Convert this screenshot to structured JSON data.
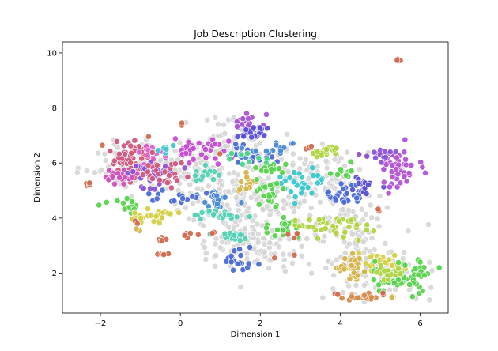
{
  "chart_data": {
    "type": "scatter",
    "title": "Job Description Clustering",
    "xlabel": "Dimension 1",
    "ylabel": "Dimension 2",
    "xlim": [
      -2.95,
      6.7
    ],
    "ylim": [
      0.55,
      10.4
    ],
    "xticks": [
      -2,
      0,
      2,
      4,
      6
    ],
    "yticks": [
      2,
      4,
      6,
      8,
      10
    ],
    "xtick_labels": [
      "−2",
      "0",
      "2",
      "4",
      "6"
    ],
    "ytick_labels": [
      "2",
      "4",
      "6",
      "8",
      "10"
    ],
    "grid": false,
    "legend": "none",
    "marker_edge_color": "#ffffff",
    "noise_color": "#d3d3d3",
    "noise_regions": [
      {
        "x": -1.0,
        "y": 5.9,
        "sx": 0.7,
        "sy": 0.4,
        "n": 110
      },
      {
        "x": 0.6,
        "y": 5.6,
        "sx": 0.5,
        "sy": 0.7,
        "n": 70
      },
      {
        "x": 1.6,
        "y": 4.4,
        "sx": 0.6,
        "sy": 0.9,
        "n": 110
      },
      {
        "x": 1.6,
        "y": 3.0,
        "sx": 0.6,
        "sy": 0.45,
        "n": 90
      },
      {
        "x": 2.5,
        "y": 5.3,
        "sx": 0.7,
        "sy": 0.7,
        "n": 80
      },
      {
        "x": 3.6,
        "y": 5.4,
        "sx": 0.6,
        "sy": 0.6,
        "n": 70
      },
      {
        "x": 4.2,
        "y": 3.8,
        "sx": 0.6,
        "sy": 0.5,
        "n": 70
      },
      {
        "x": 4.5,
        "y": 2.3,
        "sx": 0.5,
        "sy": 0.5,
        "n": 60
      },
      {
        "x": 5.3,
        "y": 2.0,
        "sx": 0.5,
        "sy": 0.4,
        "n": 40
      },
      {
        "x": 1.4,
        "y": 7.0,
        "sx": 0.4,
        "sy": 0.4,
        "n": 30
      }
    ],
    "clusters": [
      {
        "color": "#d0577e",
        "x": -1.2,
        "y": 6.1,
        "sx": 0.3,
        "sy": 0.35,
        "n": 60
      },
      {
        "color": "#d04fb9",
        "x": -1.5,
        "y": 5.5,
        "sx": 0.25,
        "sy": 0.15,
        "n": 25
      },
      {
        "color": "#c64bd4",
        "x": 0.2,
        "y": 6.4,
        "sx": 0.4,
        "sy": 0.2,
        "n": 40
      },
      {
        "color": "#dc5fcd",
        "x": -0.8,
        "y": 6.4,
        "sx": 0.2,
        "sy": 0.15,
        "n": 15
      },
      {
        "color": "#8d52d6",
        "x": -0.7,
        "y": 5.6,
        "sx": 0.35,
        "sy": 0.25,
        "n": 35
      },
      {
        "color": "#d0577e",
        "x": -0.3,
        "y": 5.6,
        "sx": 0.3,
        "sy": 0.25,
        "n": 25
      },
      {
        "color": "#a855d4",
        "x": 1.6,
        "y": 7.5,
        "sx": 0.25,
        "sy": 0.15,
        "n": 20
      },
      {
        "color": "#5b4fd6",
        "x": 1.8,
        "y": 7.1,
        "sx": 0.2,
        "sy": 0.2,
        "n": 25
      },
      {
        "color": "#4b6bd6",
        "x": 1.9,
        "y": 6.3,
        "sx": 0.35,
        "sy": 0.2,
        "n": 20
      },
      {
        "color": "#4b8ad6",
        "x": 2.2,
        "y": 6.5,
        "sx": 0.35,
        "sy": 0.15,
        "n": 15
      },
      {
        "color": "#3ac8cf",
        "x": 3.0,
        "y": 5.2,
        "sx": 0.3,
        "sy": 0.25,
        "n": 30
      },
      {
        "color": "#53d0b4",
        "x": 0.7,
        "y": 5.6,
        "sx": 0.2,
        "sy": 0.15,
        "n": 12
      },
      {
        "color": "#4bd68a",
        "x": 1.6,
        "y": 6.2,
        "sx": 0.2,
        "sy": 0.15,
        "n": 10
      },
      {
        "color": "#4b8ad6",
        "x": 0.9,
        "y": 4.7,
        "sx": 0.25,
        "sy": 0.2,
        "n": 20
      },
      {
        "color": "#4b6bd6",
        "x": -0.1,
        "y": 4.8,
        "sx": 0.3,
        "sy": 0.15,
        "n": 15
      },
      {
        "color": "#59d34d",
        "x": -1.4,
        "y": 4.45,
        "sx": 0.25,
        "sy": 0.1,
        "n": 15
      },
      {
        "color": "#d4d044",
        "x": -0.75,
        "y": 4.05,
        "sx": 0.3,
        "sy": 0.12,
        "n": 25
      },
      {
        "color": "#53d0b4",
        "x": 1.0,
        "y": 4.1,
        "sx": 0.35,
        "sy": 0.1,
        "n": 20
      },
      {
        "color": "#53d0b4",
        "x": 1.3,
        "y": 3.35,
        "sx": 0.3,
        "sy": 0.1,
        "n": 15
      },
      {
        "color": "#4b6bd6",
        "x": 1.45,
        "y": 2.6,
        "sx": 0.2,
        "sy": 0.3,
        "n": 20
      },
      {
        "color": "#d4b44b",
        "x": 1.7,
        "y": 5.3,
        "sx": 0.2,
        "sy": 0.2,
        "n": 15
      },
      {
        "color": "#59d34d",
        "x": 2.2,
        "y": 4.9,
        "sx": 0.25,
        "sy": 0.3,
        "n": 25
      },
      {
        "color": "#59d34d",
        "x": 2.3,
        "y": 5.8,
        "sx": 0.3,
        "sy": 0.12,
        "n": 15
      },
      {
        "color": "#59d34d",
        "x": 2.6,
        "y": 3.7,
        "sx": 0.3,
        "sy": 0.2,
        "n": 25
      },
      {
        "color": "#b0d440",
        "x": 3.6,
        "y": 6.4,
        "sx": 0.2,
        "sy": 0.1,
        "n": 15
      },
      {
        "color": "#b0d440",
        "x": 3.8,
        "y": 3.7,
        "sx": 0.35,
        "sy": 0.25,
        "n": 40
      },
      {
        "color": "#59d34d",
        "x": 4.1,
        "y": 5.7,
        "sx": 0.2,
        "sy": 0.15,
        "n": 12
      },
      {
        "color": "#4b6bd6",
        "x": 4.1,
        "y": 4.9,
        "sx": 0.3,
        "sy": 0.2,
        "n": 30
      },
      {
        "color": "#5b4fd6",
        "x": 4.6,
        "y": 5.2,
        "sx": 0.2,
        "sy": 0.15,
        "n": 15
      },
      {
        "color": "#b452d6",
        "x": 5.4,
        "y": 5.7,
        "sx": 0.25,
        "sy": 0.3,
        "n": 45
      },
      {
        "color": "#8d52d6",
        "x": 5.0,
        "y": 6.3,
        "sx": 0.25,
        "sy": 0.1,
        "n": 15
      },
      {
        "color": "#d4d044",
        "x": 4.9,
        "y": 2.4,
        "sx": 0.25,
        "sy": 0.2,
        "n": 25
      },
      {
        "color": "#59d34d",
        "x": 5.6,
        "y": 1.9,
        "sx": 0.35,
        "sy": 0.3,
        "n": 70
      },
      {
        "color": "#d4b44b",
        "x": 4.3,
        "y": 2.2,
        "sx": 0.2,
        "sy": 0.25,
        "n": 35
      },
      {
        "color": "#d48a4b",
        "x": 4.5,
        "y": 1.15,
        "sx": 0.25,
        "sy": 0.08,
        "n": 20
      },
      {
        "color": "#b0d440",
        "x": 5.2,
        "y": 2.05,
        "sx": 0.15,
        "sy": 0.15,
        "n": 15
      },
      {
        "color": "#3ac8cf",
        "x": -0.3,
        "y": 6.5,
        "sx": 0.12,
        "sy": 0.08,
        "n": 6
      }
    ],
    "outliers": [
      {
        "color": "#d06a50",
        "x": -2.3,
        "y": 5.2,
        "n": 6,
        "s": 0.05
      },
      {
        "color": "#d06a50",
        "x": 5.5,
        "y": 9.75,
        "n": 4,
        "s": 0.04
      },
      {
        "color": "#d06a50",
        "x": -0.5,
        "y": 3.25,
        "n": 6,
        "s": 0.08
      },
      {
        "color": "#d06a50",
        "x": -0.45,
        "y": 2.65,
        "n": 5,
        "s": 0.06
      },
      {
        "color": "#d06a50",
        "x": 0.3,
        "y": 3.35,
        "n": 5,
        "s": 0.08
      },
      {
        "color": "#d06a50",
        "x": 0.05,
        "y": 7.4,
        "n": 2,
        "s": 0.03
      },
      {
        "color": "#d06a50",
        "x": -0.8,
        "y": 6.95,
        "n": 1,
        "s": 0.01
      },
      {
        "color": "#d06a50",
        "x": -1.95,
        "y": 6.65,
        "n": 1,
        "s": 0.01
      },
      {
        "color": "#d06a50",
        "x": 3.2,
        "y": 6.55,
        "n": 3,
        "s": 0.04
      },
      {
        "color": "#d06a50",
        "x": 5.0,
        "y": 4.35,
        "n": 2,
        "s": 0.03
      },
      {
        "color": "#d06a50",
        "x": 2.9,
        "y": 3.4,
        "n": 4,
        "s": 0.08
      },
      {
        "color": "#d06a50",
        "x": 2.35,
        "y": 2.55,
        "n": 1,
        "s": 0.01
      },
      {
        "color": "#d06a50",
        "x": 2.85,
        "y": 2.65,
        "n": 1,
        "s": 0.01
      },
      {
        "color": "#d06a50",
        "x": -1.1,
        "y": 3.8,
        "n": 2,
        "s": 0.04
      },
      {
        "color": "#d06a50",
        "x": 0.8,
        "y": 3.5,
        "n": 2,
        "s": 0.04
      },
      {
        "color": "#d06a50",
        "x": 5.1,
        "y": 1.25,
        "n": 2,
        "s": 0.05
      },
      {
        "color": "#d06a50",
        "x": 3.9,
        "y": 1.25,
        "n": 2,
        "s": 0.05
      },
      {
        "color": "#d06a50",
        "x": 1.0,
        "y": 6.35,
        "n": 1,
        "s": 0.01
      },
      {
        "color": "#d4b44b",
        "x": -1.05,
        "y": 3.55,
        "n": 2,
        "s": 0.04
      },
      {
        "color": "#d4b44b",
        "x": 5.3,
        "y": 1.1,
        "n": 2,
        "s": 0.05
      }
    ]
  }
}
